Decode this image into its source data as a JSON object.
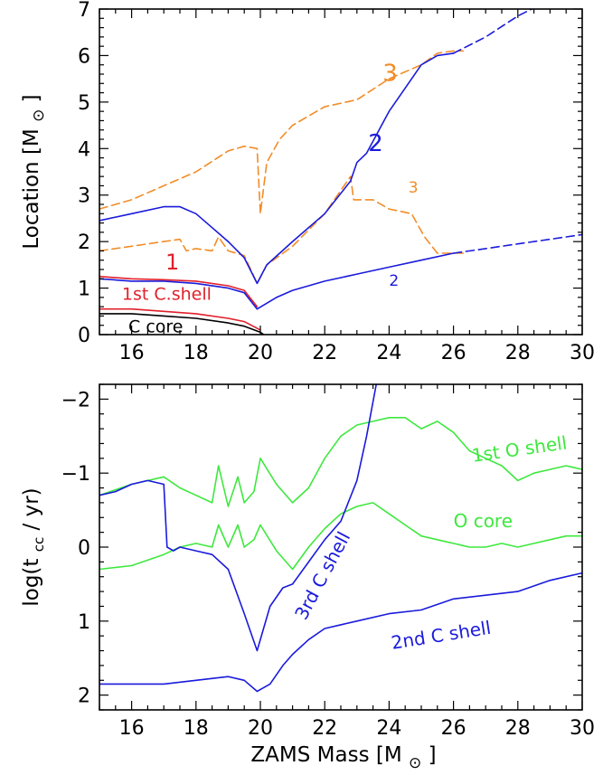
{
  "colors": {
    "orange": "#f28c28",
    "blue": "#1a1adc",
    "red": "#e0202a",
    "green": "#3ee83e",
    "black": "#000000"
  },
  "chart_data": [
    {
      "type": "line",
      "xlabel": "",
      "ylabel_text": "Location",
      "ylabel_unit": "[M",
      "ylabel_sub": "⊙",
      "ylabel_close": "]",
      "xlim": [
        15,
        30
      ],
      "ylim": [
        0,
        7
      ],
      "x_ticks": [
        16,
        18,
        20,
        22,
        24,
        26,
        28,
        30
      ],
      "y_ticks": [
        0,
        1,
        2,
        3,
        4,
        5,
        6,
        7
      ],
      "series": [
        {
          "name": "3",
          "color": "#f28c28",
          "style": "dashed",
          "x": [
            15,
            16,
            17,
            18,
            19,
            19.5,
            19.9,
            20.0,
            20.2,
            20.6,
            21,
            22,
            23,
            24,
            25,
            25.5,
            26,
            26.3
          ],
          "y": [
            2.7,
            2.9,
            3.2,
            3.5,
            3.95,
            4.05,
            4.0,
            2.6,
            3.7,
            4.2,
            4.5,
            4.9,
            5.05,
            5.5,
            5.8,
            6.05,
            6.1,
            6.1
          ]
        },
        {
          "name": "3",
          "color": "#f28c28",
          "style": "dashed",
          "x": [
            15,
            16,
            17,
            17.5,
            17.7,
            18,
            18.5,
            18.7,
            19,
            19.5,
            19.9,
            20.2,
            21,
            22,
            22.8,
            22.9,
            23.5,
            24,
            24.7,
            25.1,
            25.5,
            26,
            26.3
          ],
          "y": [
            1.8,
            1.9,
            2.0,
            2.05,
            1.8,
            1.85,
            1.8,
            2.1,
            1.8,
            1.7,
            1.1,
            1.5,
            1.9,
            2.6,
            3.4,
            2.9,
            2.9,
            2.7,
            2.6,
            2.1,
            1.75,
            1.75,
            1.75
          ]
        },
        {
          "name": "2",
          "color": "#1a1adc",
          "style": "solid",
          "x": [
            15,
            16,
            17,
            17.5,
            18,
            18.5,
            19,
            19.5,
            19.9,
            20.2,
            21,
            22,
            22.8,
            23,
            23.3,
            24,
            24.5,
            25,
            25.5,
            26
          ],
          "y": [
            2.45,
            2.6,
            2.75,
            2.75,
            2.6,
            2.3,
            2.0,
            1.65,
            1.1,
            1.5,
            2.0,
            2.6,
            3.3,
            3.7,
            3.9,
            4.8,
            5.3,
            5.8,
            6.0,
            6.05
          ]
        },
        {
          "name": "2",
          "color": "#1a1adc",
          "style": "dashed",
          "x": [
            26,
            27,
            28,
            29,
            29.5
          ],
          "y": [
            6.05,
            6.4,
            6.85,
            7.2,
            7.4
          ]
        },
        {
          "name": "2",
          "color": "#1a1adc",
          "style": "solid",
          "x": [
            19.9,
            20.5,
            21,
            22,
            23,
            24,
            25,
            26
          ],
          "y": [
            0.55,
            0.8,
            0.95,
            1.15,
            1.3,
            1.45,
            1.6,
            1.75
          ]
        },
        {
          "name": "2",
          "color": "#1a1adc",
          "style": "dashed",
          "x": [
            26,
            27,
            28,
            29,
            30
          ],
          "y": [
            1.75,
            1.85,
            1.95,
            2.05,
            2.15
          ]
        },
        {
          "name": "1",
          "color": "#e0202a",
          "style": "solid",
          "x": [
            15,
            16,
            17,
            18,
            19,
            19.5,
            19.9
          ],
          "y": [
            1.25,
            1.2,
            1.18,
            1.15,
            1.05,
            0.95,
            0.6
          ]
        },
        {
          "name": "2",
          "color": "#1a1adc",
          "style": "solid",
          "x": [
            15,
            16,
            17,
            18,
            19,
            19.5,
            19.9
          ],
          "y": [
            1.2,
            1.15,
            1.15,
            1.1,
            1.0,
            0.9,
            0.55
          ]
        },
        {
          "name": "1st C.shell",
          "color": "#e0202a",
          "style": "solid",
          "x": [
            15,
            16,
            17,
            18,
            19,
            19.5,
            20.0
          ],
          "y": [
            0.55,
            0.55,
            0.5,
            0.45,
            0.35,
            0.28,
            0.1
          ]
        },
        {
          "name": "C core",
          "color": "#000000",
          "style": "solid",
          "x": [
            15,
            16,
            17,
            18,
            19,
            19.5,
            20.0,
            20.3
          ],
          "y": [
            0.45,
            0.45,
            0.4,
            0.35,
            0.25,
            0.18,
            0.05,
            -0.1
          ]
        }
      ],
      "annotations": [
        {
          "text": "3",
          "color": "#f28c28",
          "x": 23.8,
          "y": 5.45,
          "size": 26
        },
        {
          "text": "3",
          "color": "#f28c28",
          "x": 24.6,
          "y": 3.05,
          "size": 17
        },
        {
          "text": "2",
          "color": "#1a1adc",
          "x": 23.35,
          "y": 3.95,
          "size": 26
        },
        {
          "text": "2",
          "color": "#1a1adc",
          "x": 24.0,
          "y": 1.05,
          "size": 17
        },
        {
          "text": "1",
          "color": "#e0202a",
          "x": 17.05,
          "y": 1.4,
          "size": 24
        },
        {
          "text": "1st C.shell",
          "color": "#e0202a",
          "x": 15.7,
          "y": 0.75,
          "size": 19
        },
        {
          "text": "C core",
          "color": "#000000",
          "x": 15.9,
          "y": 0.05,
          "size": 19
        }
      ]
    },
    {
      "type": "line",
      "xlabel": "ZAMS Mass [M",
      "xlabel_sub": "⊙",
      "xlabel_close": "]",
      "ylabel_text": "log(t",
      "ylabel_sub": "cc",
      "ylabel_close": " / yr)",
      "xlim": [
        15,
        30
      ],
      "ylim": [
        2.2,
        -2.2
      ],
      "x_ticks": [
        16,
        18,
        20,
        22,
        24,
        26,
        28,
        30
      ],
      "y_ticks": [
        -2,
        -1,
        0,
        1,
        2
      ],
      "y_tick_labels": [
        "−2",
        "−1",
        "0",
        "1",
        "2"
      ],
      "series": [
        {
          "name": "1st O shell",
          "color": "#3ee83e",
          "x": [
            15,
            16,
            17,
            17.5,
            18,
            18.5,
            18.7,
            19,
            19.3,
            19.5,
            19.8,
            20.0,
            20.5,
            21,
            21.5,
            22,
            22.5,
            23,
            23.5,
            24,
            24.5,
            25,
            25.5,
            26,
            26.5,
            27,
            27.5,
            28,
            28.5,
            29,
            29.5,
            30
          ],
          "y": [
            -0.7,
            -0.85,
            -0.95,
            -0.8,
            -0.7,
            -0.6,
            -1.1,
            -0.55,
            -0.95,
            -0.6,
            -0.75,
            -1.2,
            -0.85,
            -0.6,
            -0.8,
            -1.2,
            -1.5,
            -1.65,
            -1.7,
            -1.75,
            -1.75,
            -1.6,
            -1.7,
            -1.55,
            -1.3,
            -1.2,
            -1.1,
            -0.9,
            -1.0,
            -1.05,
            -1.1,
            -1.05
          ]
        },
        {
          "name": "O core",
          "color": "#3ee83e",
          "x": [
            15,
            16,
            17,
            17.5,
            18,
            18.5,
            18.7,
            19,
            19.3,
            19.5,
            19.8,
            20.0,
            20.5,
            21,
            21.5,
            22,
            22.5,
            23,
            23.5,
            24,
            24.5,
            25,
            25.5,
            26,
            26.5,
            27,
            27.5,
            28,
            28.5,
            29,
            29.5,
            30
          ],
          "y": [
            0.3,
            0.25,
            0.1,
            0.0,
            -0.05,
            0.0,
            -0.3,
            0.0,
            -0.3,
            0.0,
            -0.1,
            -0.3,
            0.05,
            0.3,
            0.0,
            -0.25,
            -0.45,
            -0.55,
            -0.6,
            -0.45,
            -0.3,
            -0.15,
            -0.1,
            -0.05,
            0.0,
            0.0,
            -0.05,
            0.0,
            -0.05,
            -0.1,
            -0.15,
            -0.15
          ]
        },
        {
          "name": "3rd C shell",
          "color": "#1a1adc",
          "x": [
            15,
            15.5,
            16,
            16.5,
            17,
            17.1,
            17.3,
            17.5,
            18,
            18.5,
            19,
            19.5,
            19.9,
            20.3,
            20.7,
            21,
            21.5,
            22,
            22.5,
            23,
            23.3,
            23.6
          ],
          "y": [
            -0.7,
            -0.75,
            -0.85,
            -0.9,
            -0.85,
            0.0,
            0.05,
            0.0,
            0.05,
            0.1,
            0.3,
            0.9,
            1.4,
            0.8,
            0.55,
            0.5,
            0.2,
            -0.1,
            -0.35,
            -0.9,
            -1.5,
            -2.2
          ]
        },
        {
          "name": "2nd C shell",
          "color": "#1a1adc",
          "x": [
            15,
            16,
            17,
            18,
            19,
            19.5,
            19.9,
            20.3,
            20.7,
            21,
            21.5,
            22,
            23,
            24,
            25,
            26,
            27,
            28,
            29,
            30
          ],
          "y": [
            1.85,
            1.85,
            1.85,
            1.8,
            1.75,
            1.8,
            1.95,
            1.85,
            1.6,
            1.45,
            1.25,
            1.1,
            1.0,
            0.9,
            0.85,
            0.7,
            0.65,
            0.6,
            0.45,
            0.35
          ]
        }
      ],
      "annotations": [
        {
          "text": "1st O shell",
          "color": "#3ee83e",
          "x": 26.6,
          "y": -1.15,
          "size": 20,
          "rotate": -8
        },
        {
          "text": "O core",
          "color": "#3ee83e",
          "x": 26.0,
          "y": -0.27,
          "size": 20,
          "rotate": 0
        },
        {
          "text": "3rd C shell",
          "color": "#1a1adc",
          "x": 21.4,
          "y": 1.0,
          "size": 20,
          "rotate": -62
        },
        {
          "text": "2nd C shell",
          "color": "#1a1adc",
          "x": 24.1,
          "y": 1.38,
          "size": 20,
          "rotate": -9
        }
      ]
    }
  ]
}
